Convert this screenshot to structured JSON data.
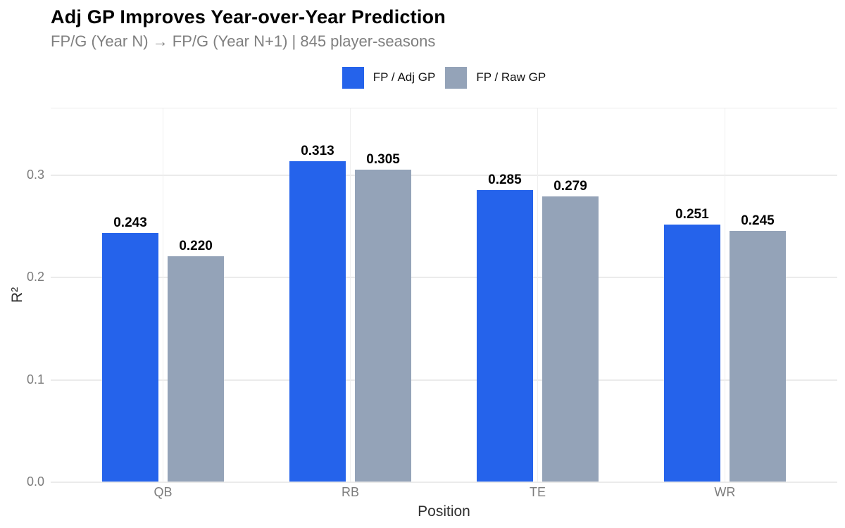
{
  "header": {
    "title": "Adj GP Improves Year-over-Year Prediction",
    "subtitle": "FP/G (Year N) → FP/G (Year N+1) | 845 player-seasons"
  },
  "legend": {
    "position": "top",
    "items": [
      {
        "label": "FP / Adj GP",
        "color": "#2563eb"
      },
      {
        "label": "FP / Raw GP",
        "color": "#94a3b8"
      }
    ]
  },
  "chart_data": {
    "type": "bar",
    "title": "Adj GP Improves Year-over-Year Prediction",
    "subtitle": "FP/G (Year N) → FP/G (Year N+1) | 845 player-seasons",
    "categories": [
      "QB",
      "RB",
      "TE",
      "WR"
    ],
    "series": [
      {
        "name": "FP / Adj GP",
        "color": "#2563eb",
        "values": [
          0.243,
          0.313,
          0.285,
          0.251
        ]
      },
      {
        "name": "FP / Raw GP",
        "color": "#94a3b8",
        "values": [
          0.22,
          0.305,
          0.279,
          0.245
        ]
      }
    ],
    "xlabel": "Position",
    "ylabel": "R²",
    "ylim": [
      0,
      0.3655
    ],
    "yticks": [
      0,
      0.1,
      0.2,
      0.3
    ],
    "ytick_labels": [
      "0.0",
      "0.1",
      "0.2",
      "0.3"
    ],
    "grid": true,
    "legend_position": "top",
    "value_labels": true,
    "value_label_decimals": 3
  }
}
